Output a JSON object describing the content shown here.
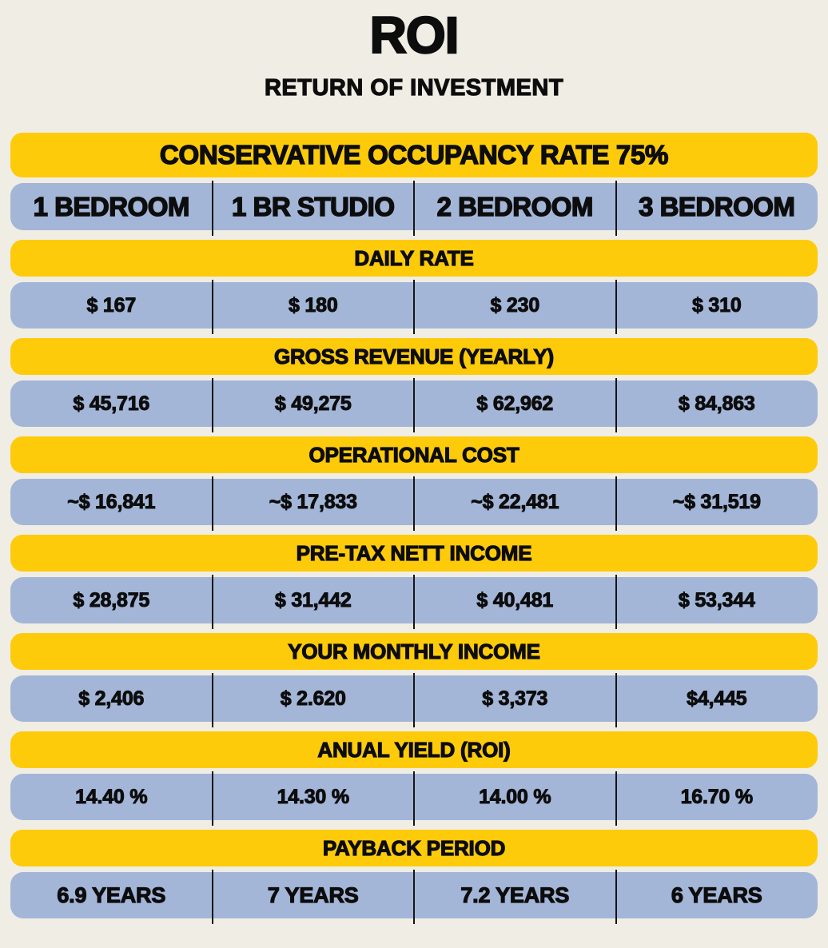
{
  "header": {
    "title": "ROI",
    "subtitle": "RETURN OF INVESTMENT"
  },
  "table": {
    "occupancy_banner": "CONSERVATIVE OCCUPANCY RATE 75%",
    "columns": [
      "1 BEDROOM",
      "1 BR STUDIO",
      "2 BEDROOM",
      "3 BEDROOM"
    ],
    "sections": [
      {
        "label": "DAILY RATE",
        "values": [
          "$ 167",
          "$ 180",
          "$ 230",
          "$ 310"
        ]
      },
      {
        "label": "GROSS REVENUE (YEARLY)",
        "values": [
          "$ 45,716",
          "$ 49,275",
          "$ 62,962",
          "$ 84,863"
        ]
      },
      {
        "label": "OPERATIONAL COST",
        "values": [
          "~$ 16,841",
          "~$ 17,833",
          "~$ 22,481",
          "~$ 31,519"
        ]
      },
      {
        "label": "PRE-TAX NETT INCOME",
        "values": [
          "$ 28,875",
          "$ 31,442",
          "$ 40,481",
          "$ 53,344"
        ]
      },
      {
        "label": "YOUR MONTHLY INCOME",
        "values": [
          "$ 2,406",
          "$ 2.620",
          "$ 3,373",
          "$4,445"
        ]
      },
      {
        "label": "ANUAL YIELD (ROI)",
        "values": [
          "14.40 %",
          "14.30 %",
          "14.00 %",
          "16.70 %"
        ]
      },
      {
        "label": "PAYBACK PERIOD",
        "values": [
          "6.9 YEARS",
          "7 YEARS",
          "7.2 YEARS",
          "6 YEARS"
        ]
      }
    ]
  },
  "colors": {
    "banner_yellow": "#FECB0A",
    "row_blue": "#A3B6D8",
    "background": "#F0EDE4",
    "text": "#0D0D0D"
  },
  "chart_data": {
    "type": "table",
    "title": "ROI",
    "subtitle": "RETURN OF INVESTMENT",
    "note": "CONSERVATIVE OCCUPANCY RATE 75%",
    "categories": [
      "1 BEDROOM",
      "1 BR STUDIO",
      "2 BEDROOM",
      "3 BEDROOM"
    ],
    "series": [
      {
        "name": "DAILY RATE",
        "values": [
          167,
          180,
          230,
          310
        ]
      },
      {
        "name": "GROSS REVENUE (YEARLY)",
        "values": [
          45716,
          49275,
          62962,
          84863
        ]
      },
      {
        "name": "OPERATIONAL COST",
        "values": [
          16841,
          17833,
          22481,
          31519
        ]
      },
      {
        "name": "PRE-TAX NETT INCOME",
        "values": [
          28875,
          31442,
          40481,
          53344
        ]
      },
      {
        "name": "YOUR MONTHLY INCOME",
        "values": [
          2406,
          2620,
          3373,
          4445
        ]
      },
      {
        "name": "ANUAL YIELD (ROI)",
        "values": [
          14.4,
          14.3,
          14.0,
          16.7
        ]
      },
      {
        "name": "PAYBACK PERIOD",
        "values": [
          6.9,
          7,
          7.2,
          6
        ]
      }
    ]
  }
}
